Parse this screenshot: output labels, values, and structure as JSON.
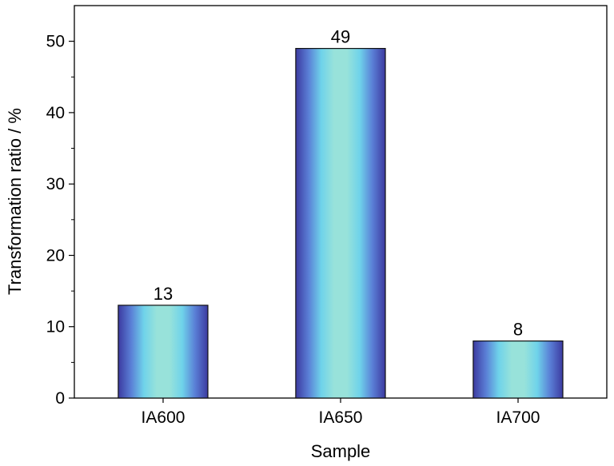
{
  "chart_data": {
    "type": "bar",
    "categories": [
      "IA600",
      "IA650",
      "IA700"
    ],
    "values": [
      13,
      49,
      8
    ],
    "data_labels": [
      "13",
      "49",
      "8"
    ],
    "title": "",
    "xlabel": "Sample",
    "ylabel": "Transformation ratio / %",
    "ylim": [
      0,
      55
    ],
    "yticks": [
      0,
      10,
      20,
      30,
      40,
      50
    ],
    "ytick_labels": [
      "0",
      "10",
      "20",
      "30",
      "40",
      "50"
    ],
    "grid": false,
    "legend": "none",
    "bar_gradient": [
      "#3c3aa0",
      "#5a7fd6",
      "#6fd3ea",
      "#98e2da",
      "#98e2da",
      "#6fd3ea",
      "#5a7fd6",
      "#3c3aa0"
    ],
    "bar_edge_color": "#111111"
  }
}
